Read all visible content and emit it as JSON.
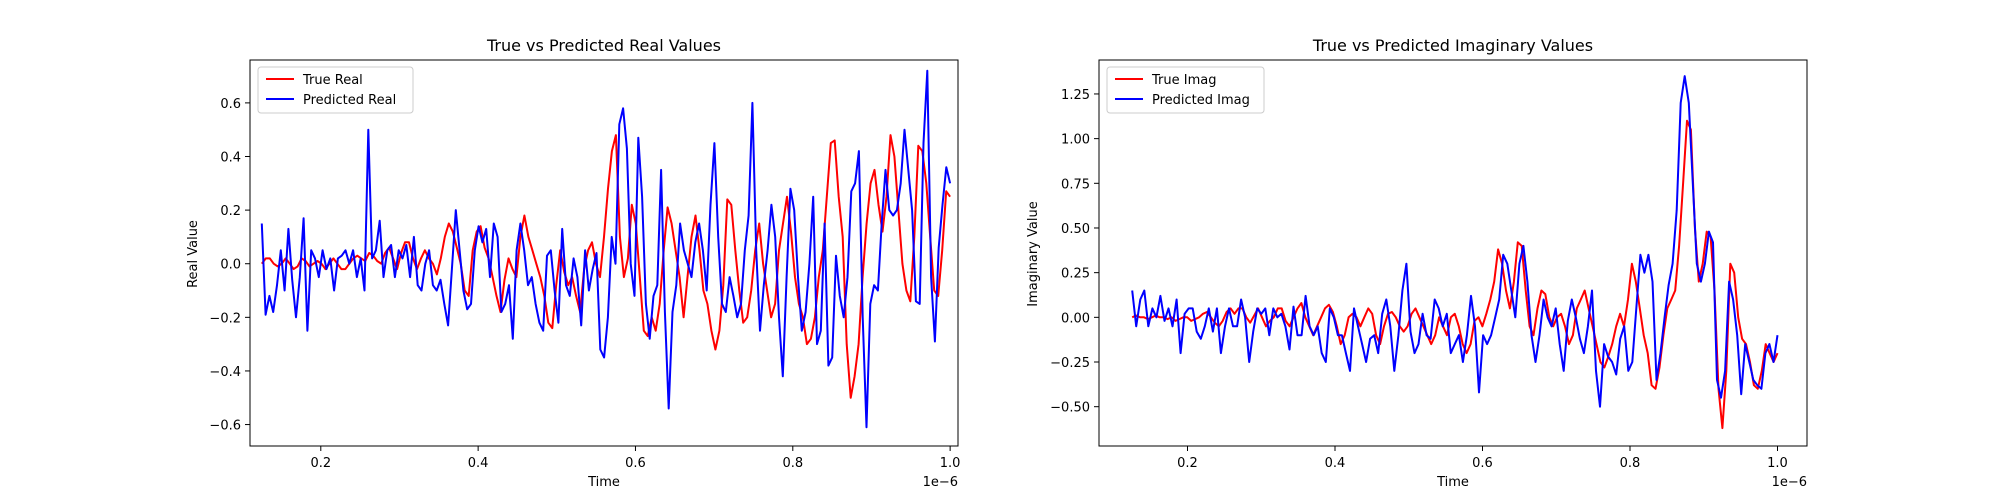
{
  "chart_data": [
    {
      "type": "line",
      "title": "True vs Predicted Real Values",
      "xlabel": "Time",
      "ylabel": "Real Value",
      "x_offset_text": "1e−6",
      "xlim": [
        0.11,
        1.01
      ],
      "ylim": [
        -0.68,
        0.76
      ],
      "x_ticks": [
        0.2,
        0.4,
        0.6,
        0.8,
        1.0
      ],
      "x_tick_labels": [
        "0.2",
        "0.4",
        "0.6",
        "0.8",
        "1.0"
      ],
      "y_ticks": [
        -0.6,
        -0.4,
        -0.2,
        0.0,
        0.2,
        0.4,
        0.6
      ],
      "y_tick_labels": [
        "−0.6",
        "−0.4",
        "−0.2",
        "0.0",
        "0.2",
        "0.4",
        "0.6"
      ],
      "x_range": [
        0.125,
        1.0
      ],
      "legend_position": "upper-left",
      "grid": false,
      "series": [
        {
          "name": "True Real",
          "color": "#ff0000",
          "values": [
            0.0,
            0.02,
            0.02,
            0.0,
            -0.01,
            0.0,
            0.02,
            0.0,
            -0.02,
            -0.01,
            0.02,
            0.01,
            -0.01,
            0.0,
            0.01,
            0.0,
            -0.02,
            0.0,
            0.02,
            0.0,
            -0.02,
            -0.02,
            0.0,
            0.02,
            0.03,
            0.02,
            0.01,
            0.04,
            0.03,
            0.01,
            0.0,
            0.04,
            0.06,
            0.02,
            -0.02,
            0.04,
            0.08,
            0.08,
            0.02,
            -0.02,
            0.02,
            0.05,
            0.02,
            0.0,
            -0.04,
            0.02,
            0.1,
            0.15,
            0.12,
            0.06,
            0.0,
            -0.1,
            -0.12,
            0.05,
            0.12,
            0.14,
            0.06,
            0.02,
            -0.05,
            -0.12,
            -0.18,
            -0.06,
            0.02,
            -0.02,
            -0.05,
            0.1,
            0.18,
            0.1,
            0.05,
            0.0,
            -0.05,
            -0.12,
            -0.22,
            -0.24,
            -0.08,
            0.05,
            -0.03,
            -0.08,
            -0.05,
            -0.12,
            -0.18,
            -0.02,
            0.05,
            0.08,
            0.0,
            -0.05,
            0.1,
            0.28,
            0.42,
            0.48,
            0.1,
            -0.05,
            0.02,
            0.22,
            0.15,
            -0.05,
            -0.25,
            -0.27,
            -0.2,
            -0.25,
            -0.15,
            0.05,
            0.21,
            0.15,
            0.05,
            -0.05,
            -0.2,
            -0.05,
            0.1,
            0.18,
            0.05,
            -0.1,
            -0.15,
            -0.25,
            -0.32,
            -0.25,
            -0.08,
            0.24,
            0.22,
            0.05,
            -0.1,
            -0.22,
            -0.2,
            -0.1,
            0.05,
            0.15,
            0.0,
            -0.1,
            -0.2,
            -0.15,
            0.05,
            0.15,
            0.25,
            0.12,
            -0.05,
            -0.15,
            -0.2,
            -0.3,
            -0.28,
            -0.2,
            -0.05,
            0.05,
            0.25,
            0.45,
            0.46,
            0.25,
            0.1,
            -0.3,
            -0.5,
            -0.42,
            -0.3,
            -0.05,
            0.15,
            0.3,
            0.35,
            0.22,
            0.12,
            0.25,
            0.48,
            0.4,
            0.2,
            0.0,
            -0.1,
            -0.14,
            0.1,
            0.44,
            0.42,
            0.3,
            0.1,
            -0.1,
            -0.12,
            0.05,
            0.27,
            0.25
          ]
        },
        {
          "name": "Predicted Real",
          "color": "#0000ff",
          "values": [
            0.15,
            -0.19,
            -0.12,
            -0.18,
            -0.08,
            0.05,
            -0.1,
            0.13,
            -0.06,
            -0.2,
            -0.05,
            0.17,
            -0.25,
            0.05,
            0.02,
            -0.05,
            0.05,
            -0.02,
            0.02,
            -0.1,
            0.02,
            0.03,
            0.05,
            0.0,
            0.05,
            -0.05,
            0.02,
            -0.1,
            0.5,
            0.02,
            0.05,
            0.16,
            -0.05,
            0.05,
            0.07,
            -0.05,
            0.05,
            0.02,
            0.07,
            -0.05,
            0.1,
            -0.08,
            -0.1,
            0.0,
            0.05,
            -0.08,
            -0.1,
            -0.06,
            -0.15,
            -0.23,
            -0.02,
            0.2,
            0.05,
            -0.1,
            -0.17,
            -0.15,
            0.05,
            0.14,
            0.08,
            0.13,
            -0.05,
            0.15,
            0.1,
            -0.18,
            -0.15,
            -0.08,
            -0.28,
            0.05,
            0.15,
            0.05,
            -0.08,
            -0.05,
            -0.15,
            -0.22,
            -0.25,
            0.03,
            0.05,
            -0.1,
            -0.22,
            0.13,
            -0.08,
            -0.12,
            0.02,
            -0.05,
            -0.23,
            0.05,
            -0.1,
            -0.02,
            0.04,
            -0.32,
            -0.35,
            -0.2,
            0.1,
            0.0,
            0.52,
            0.58,
            0.43,
            0.0,
            -0.12,
            0.47,
            0.25,
            -0.15,
            -0.28,
            -0.12,
            -0.08,
            0.35,
            -0.18,
            -0.54,
            -0.18,
            -0.08,
            0.15,
            0.05,
            0.0,
            -0.05,
            0.08,
            0.15,
            0.05,
            -0.1,
            0.22,
            0.45,
            0.1,
            -0.15,
            -0.18,
            -0.05,
            -0.12,
            -0.2,
            -0.15,
            0.05,
            0.18,
            0.6,
            0.05,
            -0.25,
            -0.08,
            0.05,
            0.22,
            0.1,
            -0.2,
            -0.42,
            -0.05,
            0.28,
            0.2,
            -0.05,
            -0.25,
            -0.18,
            0.0,
            0.25,
            -0.3,
            -0.25,
            0.15,
            -0.38,
            -0.35,
            0.03,
            -0.12,
            -0.2,
            -0.05,
            0.27,
            0.3,
            0.42,
            -0.2,
            -0.61,
            -0.15,
            -0.08,
            -0.1,
            0.15,
            0.35,
            0.2,
            0.18,
            0.2,
            0.3,
            0.5,
            0.35,
            0.2,
            -0.14,
            -0.15,
            0.45,
            0.72,
            -0.05,
            -0.29,
            0.06,
            0.22,
            0.36,
            0.3
          ]
        }
      ]
    },
    {
      "type": "line",
      "title": "True vs Predicted Imaginary Values",
      "xlabel": "Time",
      "ylabel": "Imaginary Value",
      "x_offset_text": "1e−6",
      "xlim": [
        0.08,
        1.04
      ],
      "ylim": [
        -0.72,
        1.44
      ],
      "x_ticks": [
        0.2,
        0.4,
        0.6,
        0.8,
        1.0
      ],
      "x_tick_labels": [
        "0.2",
        "0.4",
        "0.6",
        "0.8",
        "1.0"
      ],
      "y_ticks": [
        -0.5,
        -0.25,
        0.0,
        0.25,
        0.5,
        0.75,
        1.0,
        1.25
      ],
      "y_tick_labels": [
        "−0.50",
        "−0.25",
        "0.00",
        "0.25",
        "0.50",
        "0.75",
        "1.00",
        "1.25"
      ],
      "x_range": [
        0.125,
        1.0
      ],
      "legend_position": "upper-left",
      "grid": false,
      "series": [
        {
          "name": "True Imag",
          "color": "#ff0000",
          "values": [
            0.0,
            0.01,
            0.0,
            0.0,
            -0.01,
            0.0,
            0.01,
            0.0,
            0.0,
            -0.01,
            0.0,
            -0.02,
            -0.01,
            0.0,
            0.0,
            -0.02,
            -0.01,
            0.0,
            0.02,
            0.03,
            0.0,
            -0.03,
            -0.05,
            -0.02,
            0.03,
            0.05,
            0.02,
            0.05,
            0.05,
            0.0,
            -0.03,
            0.01,
            0.05,
            0.0,
            -0.05,
            -0.02,
            0.0,
            0.05,
            0.05,
            -0.02,
            -0.05,
            0.0,
            0.05,
            0.08,
            0.0,
            -0.05,
            -0.1,
            -0.05,
            0.0,
            0.05,
            0.07,
            0.03,
            -0.05,
            -0.15,
            -0.1,
            0.0,
            0.02,
            0.0,
            -0.05,
            0.0,
            0.05,
            0.02,
            -0.1,
            -0.15,
            -0.05,
            0.02,
            0.03,
            0.0,
            -0.05,
            -0.08,
            -0.05,
            0.02,
            0.05,
            0.0,
            -0.05,
            -0.1,
            -0.15,
            -0.1,
            0.0,
            -0.05,
            -0.1,
            0.0,
            0.02,
            -0.05,
            -0.15,
            -0.2,
            -0.15,
            -0.02,
            0.0,
            -0.05,
            0.02,
            0.1,
            0.2,
            0.38,
            0.3,
            0.15,
            0.05,
            0.2,
            0.42,
            0.4,
            0.15,
            -0.05,
            -0.1,
            0.05,
            0.15,
            0.13,
            0.0,
            -0.05,
            0.0,
            0.02,
            -0.05,
            -0.15,
            -0.1,
            0.05,
            0.1,
            0.15,
            0.05,
            -0.05,
            -0.15,
            -0.25,
            -0.28,
            -0.22,
            -0.15,
            -0.05,
            0.02,
            -0.05,
            0.1,
            0.3,
            0.2,
            0.05,
            -0.1,
            -0.2,
            -0.38,
            -0.4,
            -0.28,
            -0.1,
            0.05,
            0.1,
            0.15,
            0.4,
            0.75,
            1.1,
            1.05,
            0.5,
            0.2,
            0.3,
            0.48,
            0.45,
            0.15,
            -0.4,
            -0.62,
            -0.3,
            0.3,
            0.25,
            0.0,
            -0.12,
            -0.15,
            -0.25,
            -0.38,
            -0.4,
            -0.3,
            -0.15,
            -0.2,
            -0.25,
            -0.2
          ]
        },
        {
          "name": "Predicted Imag",
          "color": "#0000ff",
          "values": [
            0.15,
            -0.05,
            0.1,
            0.15,
            -0.05,
            0.05,
            0.0,
            0.12,
            -0.02,
            0.05,
            -0.05,
            0.1,
            -0.2,
            0.02,
            0.05,
            0.05,
            -0.08,
            -0.12,
            -0.05,
            0.05,
            -0.08,
            0.05,
            -0.2,
            -0.05,
            0.05,
            -0.05,
            -0.05,
            0.1,
            0.0,
            -0.25,
            -0.08,
            0.05,
            0.02,
            0.05,
            -0.1,
            0.05,
            0.0,
            0.02,
            -0.05,
            -0.18,
            0.06,
            -0.1,
            -0.1,
            0.12,
            -0.05,
            -0.1,
            -0.05,
            -0.2,
            -0.25,
            0.05,
            0.0,
            -0.1,
            -0.1,
            -0.2,
            -0.3,
            0.05,
            -0.05,
            -0.15,
            -0.25,
            -0.12,
            -0.1,
            -0.2,
            0.02,
            0.1,
            -0.05,
            -0.3,
            -0.1,
            0.15,
            0.3,
            -0.08,
            -0.2,
            -0.15,
            0.02,
            -0.1,
            -0.12,
            0.1,
            0.05,
            -0.05,
            0.02,
            -0.2,
            -0.15,
            -0.1,
            -0.25,
            -0.1,
            0.12,
            -0.05,
            -0.42,
            -0.1,
            -0.15,
            -0.1,
            0.0,
            0.1,
            0.35,
            0.3,
            0.15,
            0.0,
            0.3,
            0.4,
            0.2,
            -0.1,
            -0.25,
            -0.1,
            0.1,
            0.0,
            -0.05,
            0.05,
            -0.15,
            -0.3,
            -0.02,
            0.1,
            0.0,
            -0.12,
            -0.2,
            -0.05,
            0.15,
            -0.3,
            -0.5,
            -0.15,
            -0.22,
            -0.25,
            -0.32,
            -0.12,
            -0.05,
            -0.3,
            -0.25,
            0.05,
            0.35,
            0.25,
            0.35,
            0.2,
            -0.35,
            -0.2,
            0.0,
            0.18,
            0.3,
            0.6,
            1.2,
            1.35,
            1.2,
            0.75,
            0.3,
            0.2,
            0.3,
            0.48,
            0.42,
            -0.35,
            -0.45,
            -0.3,
            0.2,
            0.1,
            -0.1,
            -0.43,
            -0.15,
            -0.25,
            -0.35,
            -0.38,
            -0.4,
            -0.2,
            -0.15,
            -0.25,
            -0.1
          ]
        }
      ]
    }
  ]
}
